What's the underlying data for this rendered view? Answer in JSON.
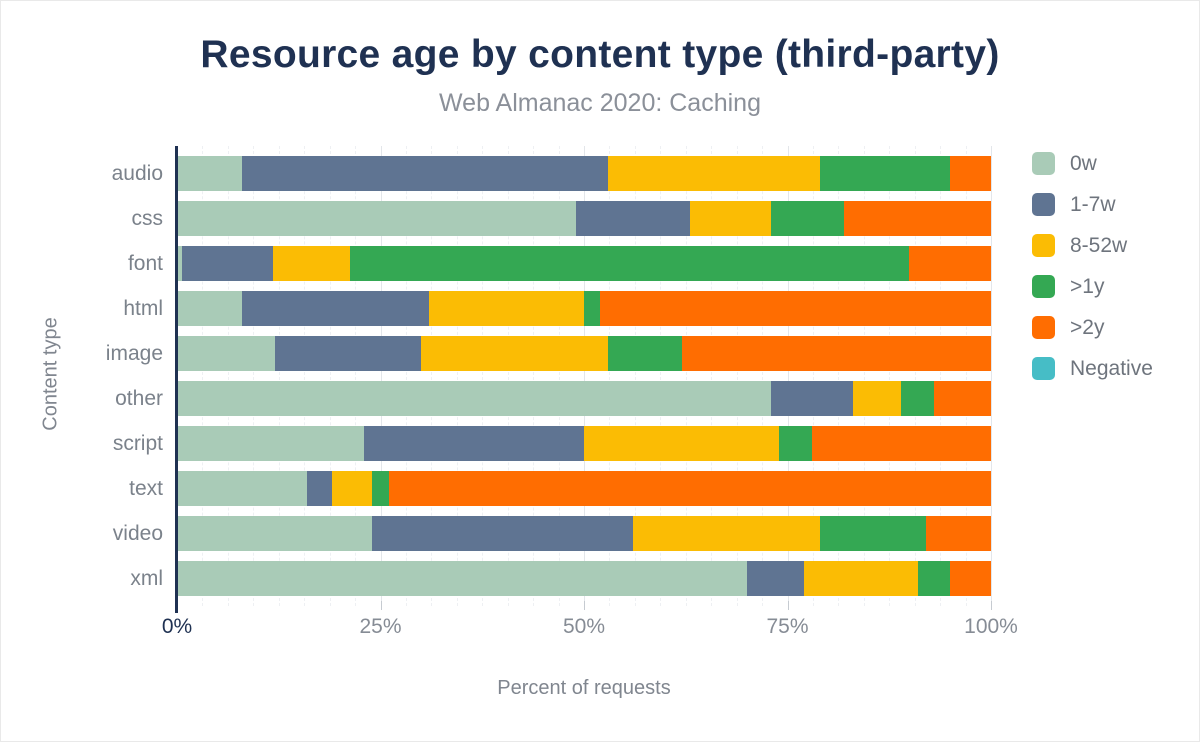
{
  "header": {
    "title": "Resource age by content type (third-party)",
    "subtitle": "Web Almanac 2020: Caching"
  },
  "chart_data": {
    "type": "bar",
    "orientation": "horizontal",
    "stacked": true,
    "title": "Resource age by content type (third-party)",
    "subtitle": "Web Almanac 2020: Caching",
    "xlabel": "Percent of requests",
    "ylabel": "Content type",
    "xlim": [
      0,
      100
    ],
    "x_ticks": [
      0,
      25,
      50,
      75,
      100
    ],
    "x_tick_labels": [
      "0%",
      "25%",
      "50%",
      "75%",
      "100%"
    ],
    "minor_grid_step": 3.125,
    "grid": true,
    "legend_position": "right",
    "categories": [
      "audio",
      "css",
      "font",
      "html",
      "image",
      "other",
      "script",
      "text",
      "video",
      "xml"
    ],
    "series": [
      {
        "name": "0w",
        "color": "#a9cbb7",
        "values": [
          8,
          49,
          0.6,
          8,
          12,
          73,
          23,
          16,
          24,
          70
        ]
      },
      {
        "name": "1-7w",
        "color": "#5f7492",
        "values": [
          45,
          14,
          11.2,
          23,
          18,
          10,
          27,
          3,
          32,
          7
        ]
      },
      {
        "name": "8-52w",
        "color": "#fbbc04",
        "values": [
          26,
          10,
          9.5,
          19,
          23,
          6,
          24,
          5,
          23,
          14
        ]
      },
      {
        "name": ">1y",
        "color": "#34a853",
        "values": [
          16,
          9,
          68.6,
          2,
          9,
          4,
          4,
          2,
          13,
          4
        ]
      },
      {
        "name": ">2y",
        "color": "#ff6d01",
        "values": [
          5,
          18,
          10.1,
          48,
          38,
          7,
          22,
          74,
          8,
          5
        ]
      },
      {
        "name": "Negative",
        "color": "#46bdc6",
        "values": [
          0,
          0,
          0,
          0,
          0,
          0,
          0,
          0,
          0,
          0
        ]
      }
    ],
    "axis_color": "#1f3152"
  }
}
